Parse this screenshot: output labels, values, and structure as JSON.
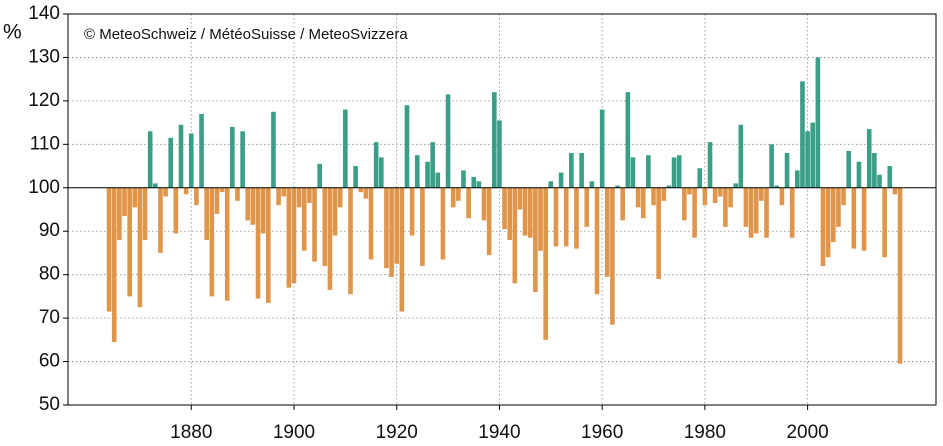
{
  "chart_data": {
    "type": "bar",
    "annotation": "© MeteoSchweiz / MétéoSuisse / MeteoSvizzera",
    "y_label": "%",
    "baseline": 100,
    "colors": {
      "above": "#3a9f86",
      "below": "#df964b"
    },
    "grid": true,
    "xlim": [
      1856,
      2025
    ],
    "ylim": [
      50,
      140
    ],
    "xticks": [
      1880,
      1900,
      1920,
      1940,
      1960,
      1980,
      2000
    ],
    "yticks": [
      50,
      60,
      70,
      80,
      90,
      100,
      110,
      120,
      130,
      140
    ],
    "x": [
      1864,
      1865,
      1866,
      1867,
      1868,
      1869,
      1870,
      1871,
      1872,
      1873,
      1874,
      1875,
      1876,
      1877,
      1878,
      1879,
      1880,
      1881,
      1882,
      1883,
      1884,
      1885,
      1886,
      1887,
      1888,
      1889,
      1890,
      1891,
      1892,
      1893,
      1894,
      1895,
      1896,
      1897,
      1898,
      1899,
      1900,
      1901,
      1902,
      1903,
      1904,
      1905,
      1906,
      1907,
      1908,
      1909,
      1910,
      1911,
      1912,
      1913,
      1914,
      1915,
      1916,
      1917,
      1918,
      1919,
      1920,
      1921,
      1922,
      1923,
      1924,
      1925,
      1926,
      1927,
      1928,
      1929,
      1930,
      1931,
      1932,
      1933,
      1934,
      1935,
      1936,
      1937,
      1938,
      1939,
      1940,
      1941,
      1942,
      1943,
      1944,
      1945,
      1946,
      1947,
      1948,
      1949,
      1950,
      1951,
      1952,
      1953,
      1954,
      1955,
      1956,
      1957,
      1958,
      1959,
      1960,
      1961,
      1962,
      1963,
      1964,
      1965,
      1966,
      1967,
      1968,
      1969,
      1970,
      1971,
      1972,
      1973,
      1974,
      1975,
      1976,
      1977,
      1978,
      1979,
      1980,
      1981,
      1982,
      1983,
      1984,
      1985,
      1986,
      1987,
      1988,
      1989,
      1990,
      1991,
      1992,
      1993,
      1994,
      1995,
      1996,
      1997,
      1998,
      1999,
      2000,
      2001,
      2002,
      2003,
      2004,
      2005,
      2006,
      2007,
      2008,
      2009,
      2010,
      2011,
      2012,
      2013,
      2014,
      2015,
      2016,
      2017,
      2018
    ],
    "values": [
      71.5,
      64.5,
      88,
      93.5,
      75,
      95.5,
      72.5,
      88,
      113,
      101,
      85,
      98,
      111.5,
      89.5,
      114.5,
      98.5,
      112.5,
      96,
      117,
      88,
      75,
      94,
      99,
      74,
      114,
      97,
      113,
      92.5,
      91.5,
      74.5,
      89.5,
      73.5,
      117.5,
      96,
      98,
      77,
      78,
      95.5,
      85.5,
      96.5,
      83,
      105.5,
      82,
      76.5,
      89,
      95.5,
      118,
      75.5,
      105,
      99,
      97.5,
      83.5,
      110.5,
      107,
      81.5,
      79.5,
      82.5,
      71.5,
      119,
      89,
      107.5,
      82,
      106,
      110.5,
      103.5,
      83.5,
      121.5,
      95.5,
      97,
      104,
      93,
      102.5,
      101.5,
      92.5,
      84.5,
      122,
      115.5,
      90.5,
      88,
      78,
      95,
      89,
      88.5,
      76,
      85.5,
      65,
      101.5,
      86.5,
      103.5,
      86.5,
      108,
      86,
      108,
      91,
      101.5,
      75.5,
      118,
      79.5,
      68.5,
      100.5,
      92.5,
      122,
      107,
      95.5,
      93,
      107.5,
      96,
      79,
      97,
      100.5,
      107,
      107.5,
      92.5,
      98.5,
      88.5,
      104.5,
      96,
      110.5,
      96.5,
      98,
      91,
      95.5,
      101,
      114.5,
      91,
      88.5,
      89.5,
      97,
      88.5,
      110,
      100.5,
      96,
      108,
      88.5,
      104,
      124.5,
      113,
      115,
      130,
      82,
      84,
      87.5,
      91,
      96,
      108.5,
      86,
      106,
      85.5,
      113.5,
      108,
      103,
      84,
      105,
      98.5,
      59.5
    ]
  }
}
